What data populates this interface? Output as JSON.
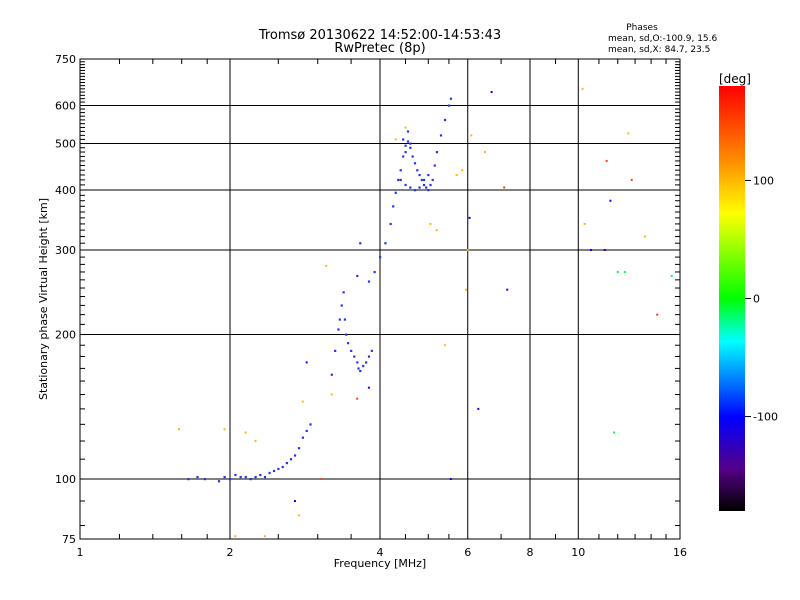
{
  "chart_data": {
    "type": "scatter",
    "title": "Tromsø 20130622 14:52:00-14:53:43",
    "subtitle": "RwPretec (8p)",
    "xlabel": "Frequency [MHz]",
    "ylabel": "Stationary phase Virtual Height [km]",
    "x_scale": "log",
    "y_scale": "log",
    "xlim": [
      1,
      16
    ],
    "ylim": [
      75,
      750
    ],
    "x_ticks": [
      "1",
      "2",
      "4",
      "6",
      "8",
      "10",
      "16"
    ],
    "y_ticks": [
      "75",
      "100",
      "200",
      "300",
      "400",
      "500",
      "600",
      "750"
    ],
    "grid": true,
    "legend": {
      "heading": "Phases",
      "line_o": "mean, sd,O:-100.9, 15.6",
      "line_x": "mean, sd,X:  84.7, 23.5"
    },
    "colorbar": {
      "unit": "[deg]",
      "range": [
        -180,
        180
      ],
      "ticks": [
        "100",
        "0",
        "-100"
      ]
    },
    "main_trace": [
      [
        1.65,
        100
      ],
      [
        1.72,
        101
      ],
      [
        1.78,
        100
      ],
      [
        1.9,
        99
      ],
      [
        1.95,
        101
      ],
      [
        2.0,
        100
      ],
      [
        2.05,
        102
      ],
      [
        2.1,
        101
      ],
      [
        2.15,
        101
      ],
      [
        2.2,
        100
      ],
      [
        2.25,
        101
      ],
      [
        2.3,
        102
      ],
      [
        2.35,
        101
      ],
      [
        2.4,
        103
      ],
      [
        2.45,
        104
      ],
      [
        2.5,
        105
      ],
      [
        2.55,
        106
      ],
      [
        2.6,
        108
      ],
      [
        2.65,
        110
      ],
      [
        2.7,
        112
      ],
      [
        2.75,
        116
      ],
      [
        2.8,
        122
      ],
      [
        2.85,
        126
      ],
      [
        2.9,
        130
      ],
      [
        3.2,
        165
      ],
      [
        3.25,
        185
      ],
      [
        3.3,
        205
      ],
      [
        3.32,
        215
      ],
      [
        3.35,
        230
      ],
      [
        3.38,
        245
      ],
      [
        3.4,
        215
      ],
      [
        3.42,
        200
      ],
      [
        3.45,
        192
      ],
      [
        3.5,
        185
      ],
      [
        3.55,
        180
      ],
      [
        3.6,
        175
      ],
      [
        3.62,
        170
      ],
      [
        3.65,
        168
      ],
      [
        3.7,
        172
      ],
      [
        3.75,
        175
      ],
      [
        3.8,
        180
      ],
      [
        3.85,
        185
      ],
      [
        3.6,
        265
      ],
      [
        3.65,
        310
      ],
      [
        3.8,
        258
      ],
      [
        3.9,
        270
      ],
      [
        4.0,
        290
      ],
      [
        4.1,
        310
      ],
      [
        4.2,
        340
      ],
      [
        4.25,
        370
      ],
      [
        4.3,
        395
      ],
      [
        4.35,
        420
      ],
      [
        4.4,
        440
      ],
      [
        4.45,
        470
      ],
      [
        4.5,
        495
      ],
      [
        4.55,
        505
      ],
      [
        4.6,
        490
      ],
      [
        4.65,
        470
      ],
      [
        4.7,
        455
      ],
      [
        4.75,
        440
      ],
      [
        4.8,
        430
      ],
      [
        4.85,
        420
      ],
      [
        4.9,
        410
      ],
      [
        4.95,
        405
      ],
      [
        5.0,
        400
      ],
      [
        5.05,
        410
      ],
      [
        5.1,
        420
      ],
      [
        5.15,
        450
      ],
      [
        5.2,
        480
      ],
      [
        5.3,
        520
      ],
      [
        5.4,
        560
      ],
      [
        5.5,
        600
      ],
      [
        5.55,
        620
      ],
      [
        4.4,
        420
      ],
      [
        4.5,
        410
      ],
      [
        4.6,
        405
      ],
      [
        4.7,
        400
      ],
      [
        4.8,
        405
      ],
      [
        4.9,
        420
      ],
      [
        5.0,
        430
      ],
      [
        4.45,
        510
      ],
      [
        4.55,
        530
      ],
      [
        4.6,
        500
      ],
      [
        4.5,
        480
      ]
    ],
    "scattered_points": [
      [
        1.58,
        127,
        100
      ],
      [
        1.95,
        127,
        100
      ],
      [
        2.05,
        76,
        100
      ],
      [
        2.15,
        125,
        100
      ],
      [
        2.25,
        120,
        100
      ],
      [
        2.35,
        76,
        100
      ],
      [
        2.7,
        90,
        -100
      ],
      [
        2.75,
        84,
        100
      ],
      [
        2.8,
        145,
        100
      ],
      [
        2.85,
        175,
        -100
      ],
      [
        3.05,
        100,
        150
      ],
      [
        3.12,
        278,
        100
      ],
      [
        3.2,
        150,
        100
      ],
      [
        3.6,
        147,
        150
      ],
      [
        3.8,
        155,
        -100
      ],
      [
        4.3,
        510,
        100
      ],
      [
        4.5,
        540,
        100
      ],
      [
        5.05,
        340,
        100
      ],
      [
        5.2,
        330,
        100
      ],
      [
        5.4,
        190,
        100
      ],
      [
        5.55,
        100,
        -100
      ],
      [
        5.7,
        430,
        100
      ],
      [
        5.85,
        440,
        100
      ],
      [
        5.95,
        248,
        100
      ],
      [
        6.0,
        300,
        100
      ],
      [
        6.05,
        350,
        -100
      ],
      [
        6.1,
        520,
        100
      ],
      [
        6.3,
        140,
        -100
      ],
      [
        6.5,
        480,
        100
      ],
      [
        6.7,
        640,
        -100
      ],
      [
        7.1,
        405,
        150
      ],
      [
        7.2,
        248,
        -100
      ],
      [
        10.2,
        650,
        100
      ],
      [
        10.3,
        340,
        100
      ],
      [
        10.6,
        300,
        -100
      ],
      [
        11.3,
        300,
        -100
      ],
      [
        11.4,
        460,
        150
      ],
      [
        11.6,
        380,
        -100
      ],
      [
        11.8,
        125,
        -10
      ],
      [
        12.0,
        270,
        -10
      ],
      [
        12.4,
        270,
        -10
      ],
      [
        12.6,
        525,
        100
      ],
      [
        12.8,
        420,
        150
      ],
      [
        13.6,
        320,
        100
      ],
      [
        14.4,
        220,
        150
      ],
      [
        15.4,
        265,
        -10
      ]
    ]
  }
}
